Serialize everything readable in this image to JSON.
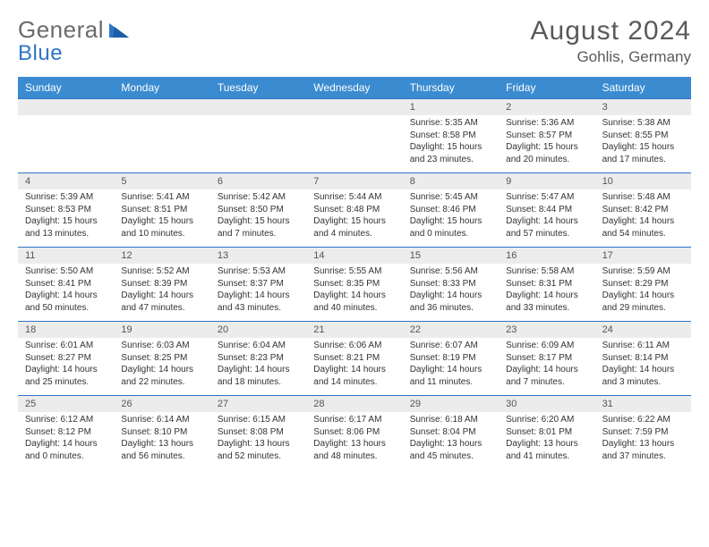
{
  "logo": {
    "left": "General",
    "right": "Blue"
  },
  "title": "August 2024",
  "location": "Gohlis, Germany",
  "colors": {
    "header_bg": "#3b8bd0",
    "header_text": "#ffffff",
    "daynum_bg": "#ececec",
    "rule": "#2e75c8",
    "text": "#333333",
    "title": "#5a5a5a"
  },
  "dow": [
    "Sunday",
    "Monday",
    "Tuesday",
    "Wednesday",
    "Thursday",
    "Friday",
    "Saturday"
  ],
  "weeks": [
    [
      {
        "n": "",
        "sr": "",
        "ss": "",
        "dl": ""
      },
      {
        "n": "",
        "sr": "",
        "ss": "",
        "dl": ""
      },
      {
        "n": "",
        "sr": "",
        "ss": "",
        "dl": ""
      },
      {
        "n": "",
        "sr": "",
        "ss": "",
        "dl": ""
      },
      {
        "n": "1",
        "sr": "Sunrise: 5:35 AM",
        "ss": "Sunset: 8:58 PM",
        "dl": "Daylight: 15 hours and 23 minutes."
      },
      {
        "n": "2",
        "sr": "Sunrise: 5:36 AM",
        "ss": "Sunset: 8:57 PM",
        "dl": "Daylight: 15 hours and 20 minutes."
      },
      {
        "n": "3",
        "sr": "Sunrise: 5:38 AM",
        "ss": "Sunset: 8:55 PM",
        "dl": "Daylight: 15 hours and 17 minutes."
      }
    ],
    [
      {
        "n": "4",
        "sr": "Sunrise: 5:39 AM",
        "ss": "Sunset: 8:53 PM",
        "dl": "Daylight: 15 hours and 13 minutes."
      },
      {
        "n": "5",
        "sr": "Sunrise: 5:41 AM",
        "ss": "Sunset: 8:51 PM",
        "dl": "Daylight: 15 hours and 10 minutes."
      },
      {
        "n": "6",
        "sr": "Sunrise: 5:42 AM",
        "ss": "Sunset: 8:50 PM",
        "dl": "Daylight: 15 hours and 7 minutes."
      },
      {
        "n": "7",
        "sr": "Sunrise: 5:44 AM",
        "ss": "Sunset: 8:48 PM",
        "dl": "Daylight: 15 hours and 4 minutes."
      },
      {
        "n": "8",
        "sr": "Sunrise: 5:45 AM",
        "ss": "Sunset: 8:46 PM",
        "dl": "Daylight: 15 hours and 0 minutes."
      },
      {
        "n": "9",
        "sr": "Sunrise: 5:47 AM",
        "ss": "Sunset: 8:44 PM",
        "dl": "Daylight: 14 hours and 57 minutes."
      },
      {
        "n": "10",
        "sr": "Sunrise: 5:48 AM",
        "ss": "Sunset: 8:42 PM",
        "dl": "Daylight: 14 hours and 54 minutes."
      }
    ],
    [
      {
        "n": "11",
        "sr": "Sunrise: 5:50 AM",
        "ss": "Sunset: 8:41 PM",
        "dl": "Daylight: 14 hours and 50 minutes."
      },
      {
        "n": "12",
        "sr": "Sunrise: 5:52 AM",
        "ss": "Sunset: 8:39 PM",
        "dl": "Daylight: 14 hours and 47 minutes."
      },
      {
        "n": "13",
        "sr": "Sunrise: 5:53 AM",
        "ss": "Sunset: 8:37 PM",
        "dl": "Daylight: 14 hours and 43 minutes."
      },
      {
        "n": "14",
        "sr": "Sunrise: 5:55 AM",
        "ss": "Sunset: 8:35 PM",
        "dl": "Daylight: 14 hours and 40 minutes."
      },
      {
        "n": "15",
        "sr": "Sunrise: 5:56 AM",
        "ss": "Sunset: 8:33 PM",
        "dl": "Daylight: 14 hours and 36 minutes."
      },
      {
        "n": "16",
        "sr": "Sunrise: 5:58 AM",
        "ss": "Sunset: 8:31 PM",
        "dl": "Daylight: 14 hours and 33 minutes."
      },
      {
        "n": "17",
        "sr": "Sunrise: 5:59 AM",
        "ss": "Sunset: 8:29 PM",
        "dl": "Daylight: 14 hours and 29 minutes."
      }
    ],
    [
      {
        "n": "18",
        "sr": "Sunrise: 6:01 AM",
        "ss": "Sunset: 8:27 PM",
        "dl": "Daylight: 14 hours and 25 minutes."
      },
      {
        "n": "19",
        "sr": "Sunrise: 6:03 AM",
        "ss": "Sunset: 8:25 PM",
        "dl": "Daylight: 14 hours and 22 minutes."
      },
      {
        "n": "20",
        "sr": "Sunrise: 6:04 AM",
        "ss": "Sunset: 8:23 PM",
        "dl": "Daylight: 14 hours and 18 minutes."
      },
      {
        "n": "21",
        "sr": "Sunrise: 6:06 AM",
        "ss": "Sunset: 8:21 PM",
        "dl": "Daylight: 14 hours and 14 minutes."
      },
      {
        "n": "22",
        "sr": "Sunrise: 6:07 AM",
        "ss": "Sunset: 8:19 PM",
        "dl": "Daylight: 14 hours and 11 minutes."
      },
      {
        "n": "23",
        "sr": "Sunrise: 6:09 AM",
        "ss": "Sunset: 8:17 PM",
        "dl": "Daylight: 14 hours and 7 minutes."
      },
      {
        "n": "24",
        "sr": "Sunrise: 6:11 AM",
        "ss": "Sunset: 8:14 PM",
        "dl": "Daylight: 14 hours and 3 minutes."
      }
    ],
    [
      {
        "n": "25",
        "sr": "Sunrise: 6:12 AM",
        "ss": "Sunset: 8:12 PM",
        "dl": "Daylight: 14 hours and 0 minutes."
      },
      {
        "n": "26",
        "sr": "Sunrise: 6:14 AM",
        "ss": "Sunset: 8:10 PM",
        "dl": "Daylight: 13 hours and 56 minutes."
      },
      {
        "n": "27",
        "sr": "Sunrise: 6:15 AM",
        "ss": "Sunset: 8:08 PM",
        "dl": "Daylight: 13 hours and 52 minutes."
      },
      {
        "n": "28",
        "sr": "Sunrise: 6:17 AM",
        "ss": "Sunset: 8:06 PM",
        "dl": "Daylight: 13 hours and 48 minutes."
      },
      {
        "n": "29",
        "sr": "Sunrise: 6:18 AM",
        "ss": "Sunset: 8:04 PM",
        "dl": "Daylight: 13 hours and 45 minutes."
      },
      {
        "n": "30",
        "sr": "Sunrise: 6:20 AM",
        "ss": "Sunset: 8:01 PM",
        "dl": "Daylight: 13 hours and 41 minutes."
      },
      {
        "n": "31",
        "sr": "Sunrise: 6:22 AM",
        "ss": "Sunset: 7:59 PM",
        "dl": "Daylight: 13 hours and 37 minutes."
      }
    ]
  ]
}
